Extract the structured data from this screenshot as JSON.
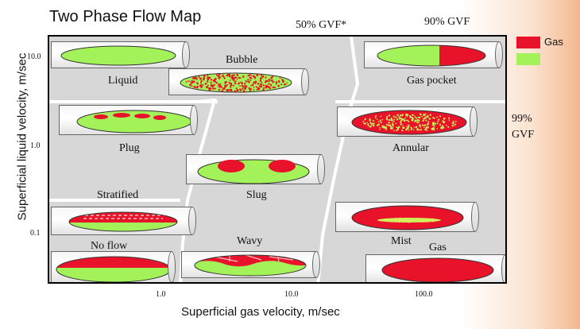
{
  "title": "Two Phase Flow Map",
  "gvf_labels": {
    "gvf50": "50% GVF*",
    "gvf90": "90% GVF",
    "gvf99": "99%\nGVF"
  },
  "axes": {
    "x_label": "Superficial gas velocity, m/sec",
    "y_label": "Superficial liquid velocity, m/sec",
    "x_ticks": [
      "1.0",
      "10.0",
      "100.0"
    ],
    "y_ticks": [
      "10.0",
      "1.0",
      "0.1"
    ]
  },
  "legend": {
    "items": [
      {
        "label": "Gas",
        "color": "#e8132a"
      },
      {
        "label": "",
        "color": "#a4f25a"
      }
    ]
  },
  "colors": {
    "gas": "#e8132a",
    "liquid": "#a4f25a",
    "pipe_border": "#666666",
    "region_bg": "#d7d7d7"
  },
  "regimes": {
    "liquid": "Liquid",
    "bubble": "Bubble",
    "gas_pocket": "Gas pocket",
    "plug": "Plug",
    "annular": "Annular",
    "stratified": "Stratified",
    "slug": "Slug",
    "mist": "Mist",
    "no_flow": "No flow",
    "wavy": "Wavy",
    "gas": "Gas"
  }
}
